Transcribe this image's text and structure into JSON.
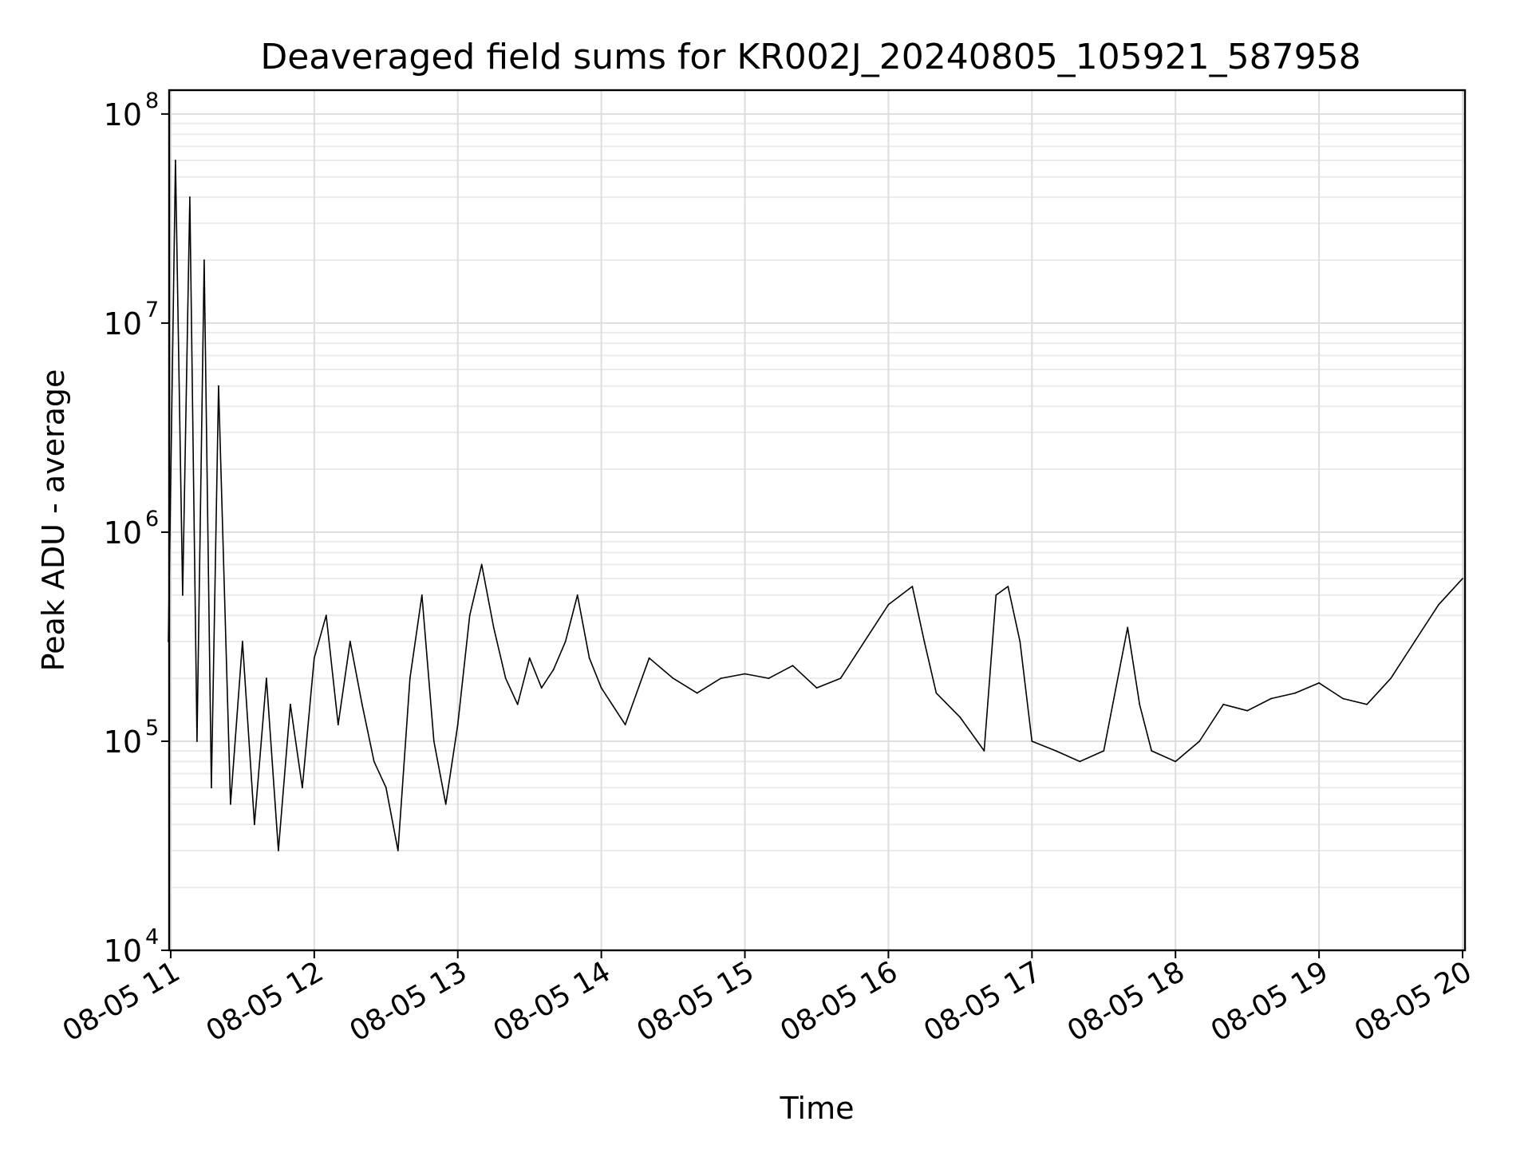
{
  "chart_data": {
    "type": "line",
    "title": "Deaveraged field sums for KR002J_20240805_105921_587958",
    "xlabel": "Time",
    "ylabel": "Peak ADU - average",
    "x_range": [
      "08-05 10:59:21",
      "08-05 20:01:00"
    ],
    "ylim": [
      10000,
      130000000
    ],
    "yscale": "log",
    "grid": true,
    "x_ticks": [
      {
        "label": "08-05 11",
        "value": "08-05 11:00"
      },
      {
        "label": "08-05 12",
        "value": "08-05 12:00"
      },
      {
        "label": "08-05 13",
        "value": "08-05 13:00"
      },
      {
        "label": "08-05 14",
        "value": "08-05 14:00"
      },
      {
        "label": "08-05 15",
        "value": "08-05 15:00"
      },
      {
        "label": "08-05 16",
        "value": "08-05 16:00"
      },
      {
        "label": "08-05 17",
        "value": "08-05 17:00"
      },
      {
        "label": "08-05 18",
        "value": "08-05 18:00"
      },
      {
        "label": "08-05 19",
        "value": "08-05 19:00"
      },
      {
        "label": "08-05 20",
        "value": "08-05 20:00"
      }
    ],
    "y_ticks": [
      {
        "value": 10000,
        "base": "10",
        "exp": "4"
      },
      {
        "value": 100000,
        "base": "10",
        "exp": "5"
      },
      {
        "value": 1000000,
        "base": "10",
        "exp": "6"
      },
      {
        "value": 10000000,
        "base": "10",
        "exp": "7"
      },
      {
        "value": 100000000,
        "base": "10",
        "exp": "8"
      }
    ],
    "series": [
      {
        "color": "#000000",
        "points": [
          [
            "08-05 10:59",
            300000
          ],
          [
            "08-05 11:02",
            60000000
          ],
          [
            "08-05 11:05",
            500000
          ],
          [
            "08-05 11:08",
            40000000
          ],
          [
            "08-05 11:11",
            100000
          ],
          [
            "08-05 11:14",
            20000000
          ],
          [
            "08-05 11:17",
            60000
          ],
          [
            "08-05 11:20",
            5000000
          ],
          [
            "08-05 11:25",
            50000
          ],
          [
            "08-05 11:30",
            300000
          ],
          [
            "08-05 11:35",
            40000
          ],
          [
            "08-05 11:40",
            200000
          ],
          [
            "08-05 11:45",
            30000
          ],
          [
            "08-05 11:50",
            150000
          ],
          [
            "08-05 11:55",
            60000
          ],
          [
            "08-05 12:00",
            250000
          ],
          [
            "08-05 12:05",
            400000
          ],
          [
            "08-05 12:10",
            120000
          ],
          [
            "08-05 12:15",
            300000
          ],
          [
            "08-05 12:20",
            150000
          ],
          [
            "08-05 12:25",
            80000
          ],
          [
            "08-05 12:30",
            60000
          ],
          [
            "08-05 12:35",
            30000
          ],
          [
            "08-05 12:40",
            200000
          ],
          [
            "08-05 12:45",
            500000
          ],
          [
            "08-05 12:50",
            100000
          ],
          [
            "08-05 12:55",
            50000
          ],
          [
            "08-05 13:00",
            120000
          ],
          [
            "08-05 13:05",
            400000
          ],
          [
            "08-05 13:10",
            700000
          ],
          [
            "08-05 13:15",
            350000
          ],
          [
            "08-05 13:20",
            200000
          ],
          [
            "08-05 13:25",
            150000
          ],
          [
            "08-05 13:30",
            250000
          ],
          [
            "08-05 13:35",
            180000
          ],
          [
            "08-05 13:40",
            220000
          ],
          [
            "08-05 13:45",
            300000
          ],
          [
            "08-05 13:50",
            500000
          ],
          [
            "08-05 13:55",
            250000
          ],
          [
            "08-05 14:00",
            180000
          ],
          [
            "08-05 14:10",
            120000
          ],
          [
            "08-05 14:20",
            250000
          ],
          [
            "08-05 14:30",
            200000
          ],
          [
            "08-05 14:40",
            170000
          ],
          [
            "08-05 14:50",
            200000
          ],
          [
            "08-05 15:00",
            210000
          ],
          [
            "08-05 15:10",
            200000
          ],
          [
            "08-05 15:20",
            230000
          ],
          [
            "08-05 15:30",
            180000
          ],
          [
            "08-05 15:40",
            200000
          ],
          [
            "08-05 15:50",
            300000
          ],
          [
            "08-05 16:00",
            450000
          ],
          [
            "08-05 16:10",
            550000
          ],
          [
            "08-05 16:15",
            300000
          ],
          [
            "08-05 16:20",
            170000
          ],
          [
            "08-05 16:30",
            130000
          ],
          [
            "08-05 16:40",
            90000
          ],
          [
            "08-05 16:45",
            500000
          ],
          [
            "08-05 16:50",
            550000
          ],
          [
            "08-05 16:55",
            300000
          ],
          [
            "08-05 17:00",
            100000
          ],
          [
            "08-05 17:10",
            90000
          ],
          [
            "08-05 17:20",
            80000
          ],
          [
            "08-05 17:30",
            90000
          ],
          [
            "08-05 17:40",
            350000
          ],
          [
            "08-05 17:45",
            150000
          ],
          [
            "08-05 17:50",
            90000
          ],
          [
            "08-05 18:00",
            80000
          ],
          [
            "08-05 18:10",
            100000
          ],
          [
            "08-05 18:20",
            150000
          ],
          [
            "08-05 18:30",
            140000
          ],
          [
            "08-05 18:40",
            160000
          ],
          [
            "08-05 18:50",
            170000
          ],
          [
            "08-05 19:00",
            190000
          ],
          [
            "08-05 19:10",
            160000
          ],
          [
            "08-05 19:20",
            150000
          ],
          [
            "08-05 19:30",
            200000
          ],
          [
            "08-05 19:40",
            300000
          ],
          [
            "08-05 19:50",
            450000
          ],
          [
            "08-05 20:00",
            600000
          ]
        ]
      }
    ]
  }
}
